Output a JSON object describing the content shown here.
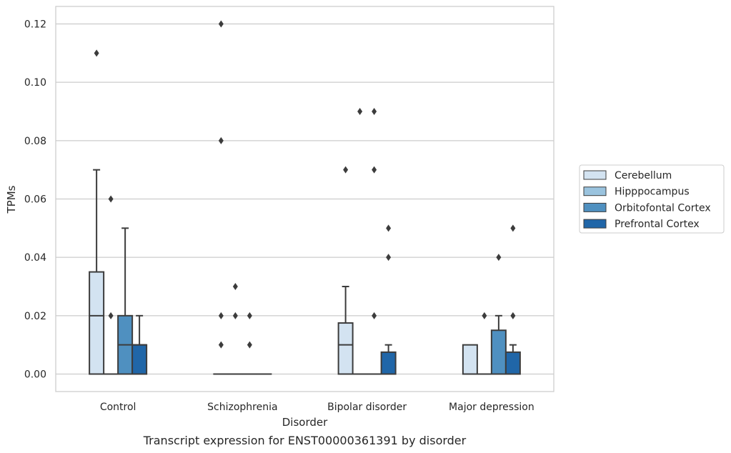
{
  "caption": "Transcript expression for ENST00000361391 by disorder",
  "chart_data": {
    "type": "box",
    "xlabel": "Disorder",
    "ylabel": "TPMs",
    "ylim": [
      -0.006,
      0.126
    ],
    "yticks": [
      "0.00",
      "0.02",
      "0.04",
      "0.06",
      "0.08",
      "0.10",
      "0.12"
    ],
    "ytick_values": [
      0,
      0.02,
      0.04,
      0.06,
      0.08,
      0.1,
      0.12
    ],
    "grid": "horizontal",
    "legend_position": "right",
    "categories": [
      "Control",
      "Schizophrenia",
      "Bipolar disorder",
      "Major depression"
    ],
    "series": [
      {
        "name": "Cerebellum",
        "color": "#d3e3f1",
        "boxes": [
          {
            "q1": 0,
            "median": 0.02,
            "q3": 0.035,
            "whisker_low": 0,
            "whisker_high": 0.07,
            "outliers": [
              0.11
            ]
          },
          {
            "q1": 0,
            "median": 0,
            "q3": 0,
            "whisker_low": 0,
            "whisker_high": 0,
            "outliers": [
              0.12,
              0.08,
              0.02,
              0.01
            ]
          },
          {
            "q1": 0,
            "median": 0.01,
            "q3": 0.0175,
            "whisker_low": 0,
            "whisker_high": 0.03,
            "outliers": [
              0.07
            ]
          },
          {
            "q1": 0,
            "median": 0,
            "q3": 0.01,
            "whisker_low": 0,
            "whisker_high": 0.01,
            "outliers": []
          }
        ]
      },
      {
        "name": "Hipppocampus",
        "color": "#9ac3de",
        "boxes": [
          {
            "q1": 0,
            "median": 0,
            "q3": 0,
            "whisker_low": 0,
            "whisker_high": 0,
            "outliers": [
              0.06,
              0.02
            ]
          },
          {
            "q1": 0,
            "median": 0,
            "q3": 0,
            "whisker_low": 0,
            "whisker_high": 0,
            "outliers": [
              0.03,
              0.02
            ]
          },
          {
            "q1": 0,
            "median": 0,
            "q3": 0,
            "whisker_low": 0,
            "whisker_high": 0,
            "outliers": [
              0.09
            ]
          },
          {
            "q1": 0,
            "median": 0,
            "q3": 0,
            "whisker_low": 0,
            "whisker_high": 0,
            "outliers": [
              0.02
            ]
          }
        ]
      },
      {
        "name": "Orbitofontal Cortex",
        "color": "#4f90c0",
        "boxes": [
          {
            "q1": 0,
            "median": 0.01,
            "q3": 0.02,
            "whisker_low": 0,
            "whisker_high": 0.05,
            "outliers": []
          },
          {
            "q1": 0,
            "median": 0,
            "q3": 0,
            "whisker_low": 0,
            "whisker_high": 0,
            "outliers": [
              0.02,
              0.01
            ]
          },
          {
            "q1": 0,
            "median": 0,
            "q3": 0,
            "whisker_low": 0,
            "whisker_high": 0,
            "outliers": [
              0.09,
              0.07,
              0.02
            ]
          },
          {
            "q1": 0,
            "median": 0,
            "q3": 0.015,
            "whisker_low": 0,
            "whisker_high": 0.02,
            "outliers": [
              0.04
            ]
          }
        ]
      },
      {
        "name": "Prefrontal Cortex",
        "color": "#2066a8",
        "boxes": [
          {
            "q1": 0,
            "median": 0.01,
            "q3": 0.01,
            "whisker_low": 0,
            "whisker_high": 0.02,
            "outliers": []
          },
          {
            "q1": 0,
            "median": 0,
            "q3": 0,
            "whisker_low": 0,
            "whisker_high": 0,
            "outliers": []
          },
          {
            "q1": 0,
            "median": 0,
            "q3": 0.0075,
            "whisker_low": 0,
            "whisker_high": 0.01,
            "outliers": [
              0.05,
              0.04
            ]
          },
          {
            "q1": 0,
            "median": 0,
            "q3": 0.0075,
            "whisker_low": 0,
            "whisker_high": 0.01,
            "outliers": [
              0.05,
              0.02
            ]
          }
        ]
      }
    ]
  }
}
